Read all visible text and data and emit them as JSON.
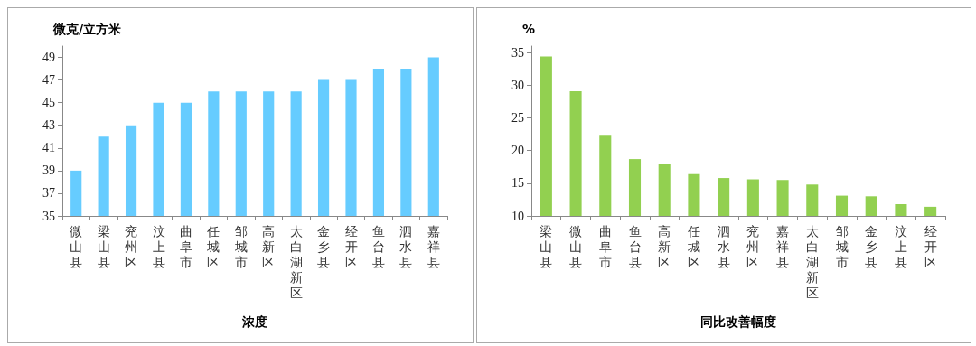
{
  "chart_data": [
    {
      "type": "bar",
      "ylabel": "微克/立方米",
      "xlabel": "浓度",
      "categories": [
        "微山县",
        "梁山县",
        "兖州区",
        "汶上县",
        "曲阜市",
        "任城区",
        "邹城市",
        "高新区",
        "太白湖新区",
        "金乡县",
        "经开区",
        "鱼台县",
        "泗水县",
        "嘉祥县"
      ],
      "values": [
        39,
        42,
        43,
        45,
        45,
        46,
        46,
        46,
        46,
        47,
        47,
        48,
        48,
        49
      ],
      "color": "#66ccff",
      "ylim": [
        35,
        50
      ],
      "yticks": [
        35,
        37,
        39,
        41,
        43,
        45,
        47,
        49
      ],
      "grid": false
    },
    {
      "type": "bar",
      "ylabel": "%",
      "xlabel": "同比改善幅度",
      "categories": [
        "梁山县",
        "微山县",
        "曲阜市",
        "鱼台县",
        "高新区",
        "任城区",
        "泗水县",
        "兖州区",
        "嘉祥县",
        "太白湖新区",
        "邹城市",
        "金乡县",
        "汶上县",
        "经开区"
      ],
      "values": [
        34.4,
        29.1,
        22.4,
        18.7,
        17.9,
        16.4,
        15.8,
        15.6,
        15.5,
        14.8,
        13.1,
        13.0,
        11.8,
        11.4
      ],
      "color": "#92d050",
      "ylim": [
        10,
        36
      ],
      "yticks": [
        10,
        15,
        20,
        25,
        30,
        35
      ],
      "grid": false
    }
  ]
}
